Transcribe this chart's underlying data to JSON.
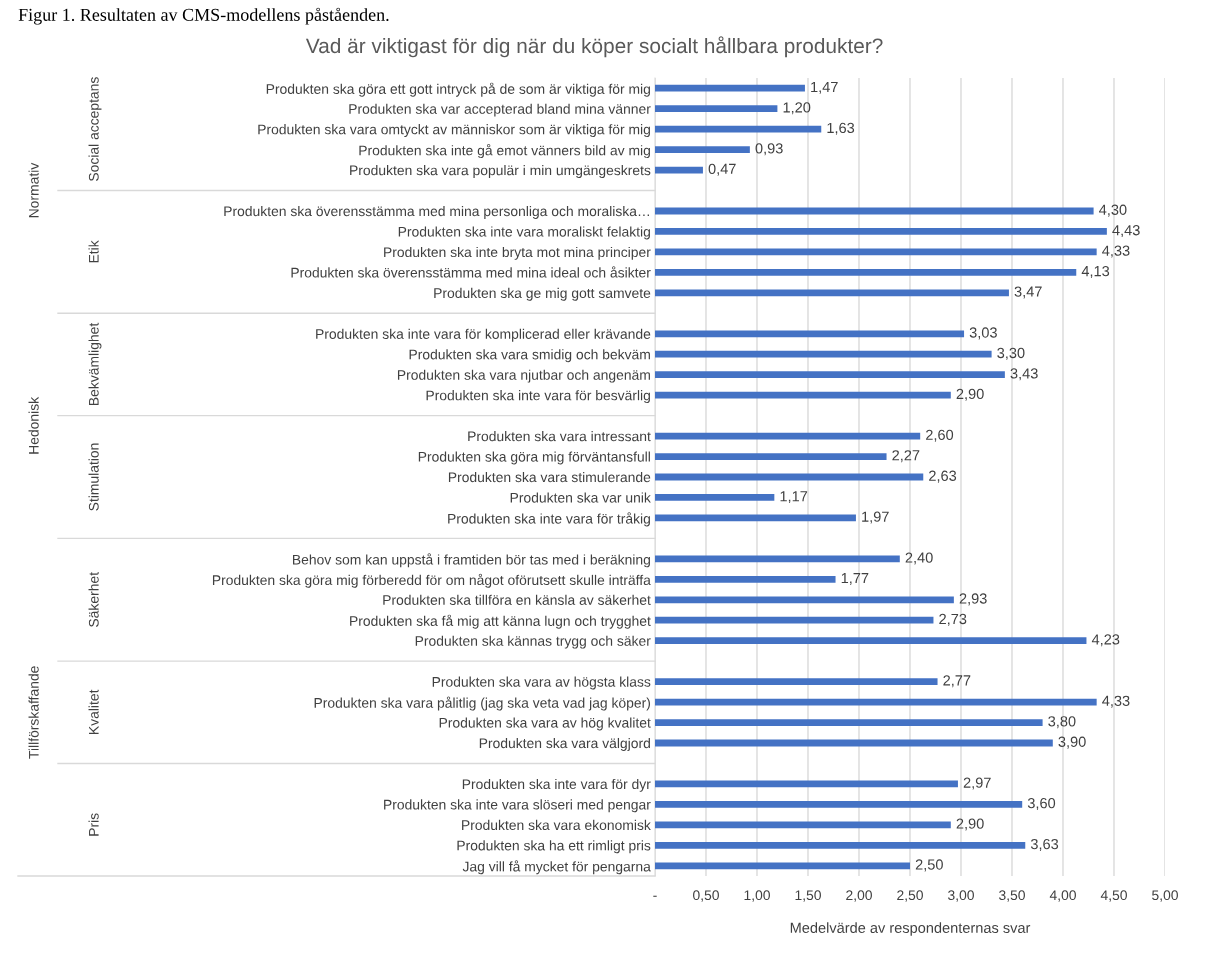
{
  "chart_data": {
    "type": "bar",
    "orientation": "horizontal",
    "title": "Vad är viktigast för dig när du köper socialt hållbara produkter?",
    "xlabel": "Medelvärde av respondenternas svar",
    "categories": [
      "Produkten ska göra ett gott intryck på de som är viktiga för mig",
      "Produkten ska var accepterad bland mina vänner",
      "Produkten ska vara omtyckt av människor som är viktiga för mig",
      "Produkten ska inte gå emot vänners bild av mig",
      "Produkten ska vara populär i min umgängeskrets",
      null,
      "Produkten ska överensstämma med mina personliga och moraliska…",
      "Produkten ska inte vara moraliskt felaktig",
      "Produkten ska inte bryta mot mina principer",
      "Produkten ska överensstämma med mina ideal och åsikter",
      "Produkten ska ge mig gott samvete",
      null,
      "Produkten ska inte vara för komplicerad eller krävande",
      "Produkten ska vara smidig och bekväm",
      "Produkten ska vara njutbar och angenäm",
      "Produkten ska inte vara för besvärlig",
      null,
      "Produkten ska vara intressant",
      "Produkten ska göra mig förväntansfull",
      "Produkten ska vara stimulerande",
      "Produkten ska var unik",
      "Produkten ska inte vara för tråkig",
      null,
      "Behov som kan uppstå i framtiden bör tas med i beräkning",
      "Produkten ska göra mig förberedd för om något oförutsett skulle inträffa",
      "Produkten ska tillföra en känsla av säkerhet",
      "Produkten ska få mig att känna lugn och trygghet",
      "Produkten ska kännas trygg och säker",
      null,
      "Produkten ska vara av högsta klass",
      "Produkten ska vara pålitlig (jag ska veta vad jag köper)",
      "Produkten ska vara av hög kvalitet",
      "Produkten ska vara välgjord",
      null,
      "Produkten ska inte vara för dyr",
      "Produkten ska inte vara slöseri med pengar",
      "Produkten ska vara ekonomisk",
      "Produkten ska ha ett rimligt pris",
      "Jag vill få mycket för pengarna"
    ],
    "values": [
      1.47,
      1.2,
      1.63,
      0.93,
      0.47,
      null,
      4.3,
      4.43,
      4.33,
      4.13,
      3.47,
      null,
      3.03,
      3.3,
      3.43,
      2.9,
      null,
      2.6,
      2.27,
      2.63,
      1.17,
      1.97,
      null,
      2.4,
      1.77,
      2.93,
      2.73,
      4.23,
      null,
      2.77,
      4.33,
      3.8,
      3.9,
      null,
      2.97,
      3.6,
      2.9,
      3.63,
      2.5
    ],
    "value_labels": [
      "1,47",
      "1,20",
      "1,63",
      "0,93",
      "0,47",
      null,
      "4,30",
      "4,43",
      "4,33",
      "4,13",
      "3,47",
      null,
      "3,03",
      "3,30",
      "3,43",
      "2,90",
      null,
      "2,60",
      "2,27",
      "2,63",
      "1,17",
      "1,97",
      null,
      "2,40",
      "1,77",
      "2,93",
      "2,73",
      "4,23",
      null,
      "2,77",
      "4,33",
      "3,80",
      "3,90",
      null,
      "2,97",
      "3,60",
      "2,90",
      "3,63",
      "2,50"
    ],
    "color": "#4472c4",
    "xlim": [
      0,
      5
    ],
    "xticks": [
      {
        "value": 0,
        "label": "-"
      },
      {
        "value": 0.5,
        "label": "0,50"
      },
      {
        "value": 1,
        "label": "1,00"
      },
      {
        "value": 1.5,
        "label": "1,50"
      },
      {
        "value": 2,
        "label": "2,00"
      },
      {
        "value": 2.5,
        "label": "2,50"
      },
      {
        "value": 3,
        "label": "3,00"
      },
      {
        "value": 3.5,
        "label": "3,50"
      },
      {
        "value": 4,
        "label": "4,00"
      },
      {
        "value": 4.5,
        "label": "4,50"
      },
      {
        "value": 5,
        "label": "5,00"
      }
    ],
    "grid": "x",
    "annotations": [
      "Figur 1. Resultaten av CMS-modellens påståenden.",
      "Normativ",
      "Social acceptans",
      "Etik",
      "Hedonisk",
      "Bekvämlighet",
      "Stimulation",
      "Tillförskaffande",
      "Säkerhet",
      "Kvalitet",
      "Pris"
    ]
  }
}
